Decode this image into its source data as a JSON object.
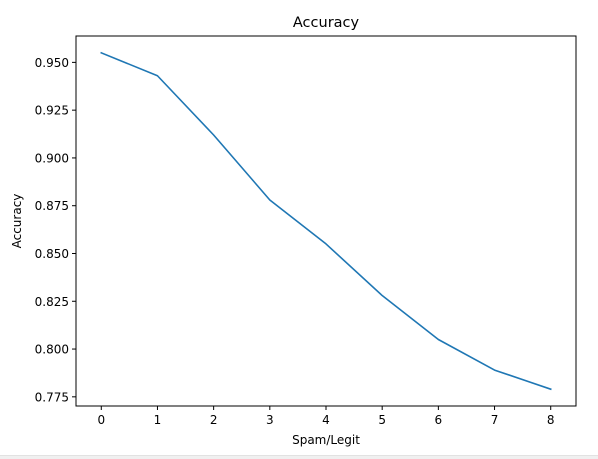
{
  "chart_data": {
    "type": "line",
    "title": "Accuracy",
    "xlabel": "Spam/Legit",
    "ylabel": "Accuracy",
    "x": [
      0,
      1,
      2,
      3,
      4,
      5,
      6,
      7,
      8
    ],
    "series": [
      {
        "values": [
          0.955,
          0.943,
          0.912,
          0.878,
          0.855,
          0.828,
          0.805,
          0.789,
          0.779
        ],
        "color": "#1f77b4"
      }
    ],
    "xlim": [
      -0.45,
      8.45
    ],
    "ylim": [
      0.7702,
      0.9638
    ],
    "xticks": [
      0,
      1,
      2,
      3,
      4,
      5,
      6,
      7,
      8
    ],
    "xtick_labels": [
      "0",
      "1",
      "2",
      "3",
      "4",
      "5",
      "6",
      "7",
      "8"
    ],
    "yticks": [
      0.775,
      0.8,
      0.825,
      0.85,
      0.875,
      0.9,
      0.925,
      0.95
    ],
    "ytick_labels": [
      "0.775",
      "0.800",
      "0.825",
      "0.850",
      "0.875",
      "0.900",
      "0.925",
      "0.950"
    ],
    "grid": false,
    "legend": "none"
  }
}
